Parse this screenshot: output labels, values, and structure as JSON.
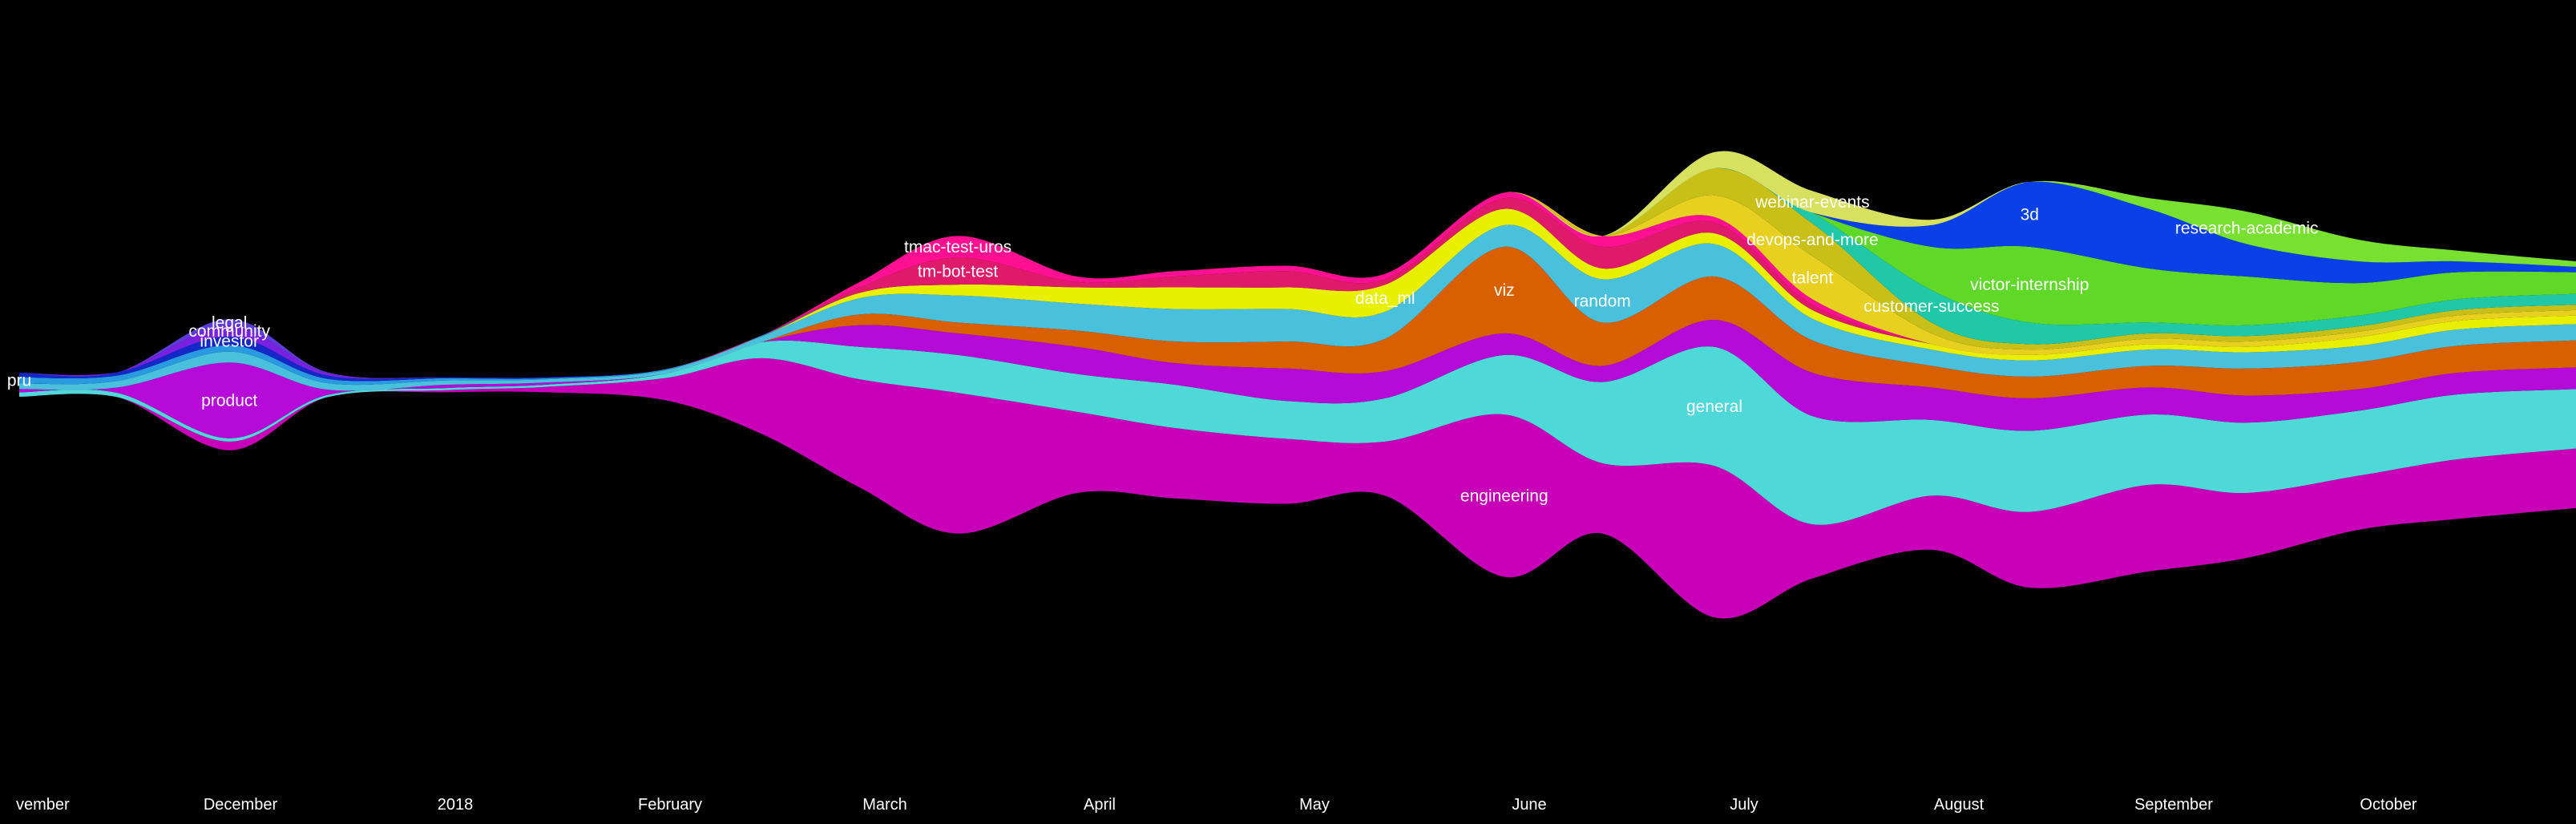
{
  "chart_data": {
    "type": "area",
    "subtype": "streamgraph",
    "background": "#000000",
    "x": [
      "2017-11-01",
      "2017-11-15",
      "2017-12-01",
      "2017-12-15",
      "2018-01-01",
      "2018-01-15",
      "2018-02-01",
      "2018-02-15",
      "2018-03-01",
      "2018-03-15",
      "2018-04-01",
      "2018-04-15",
      "2018-05-01",
      "2018-05-15",
      "2018-06-01",
      "2018-06-15",
      "2018-07-01",
      "2018-07-15",
      "2018-08-01",
      "2018-08-15",
      "2018-09-01",
      "2018-09-15",
      "2018-10-01",
      "2018-10-15",
      "2018-11-01"
    ],
    "xticks": [
      "vember",
      "December",
      "2018",
      "February",
      "March",
      "April",
      "May",
      "June",
      "July",
      "August",
      "September",
      "October"
    ],
    "series": [
      {
        "name": "engineering",
        "color": "#c800b8",
        "values": [
          0,
          0,
          8,
          0,
          2,
          5,
          20,
          70,
          100,
          130,
          75,
          65,
          60,
          50,
          150,
          65,
          140,
          50,
          50,
          70,
          80,
          60,
          50,
          55,
          55
        ]
      },
      {
        "name": "general",
        "color": "#4fd8d8",
        "values": [
          4,
          4,
          3,
          2,
          2,
          2,
          4,
          15,
          30,
          35,
          35,
          40,
          35,
          40,
          55,
          75,
          110,
          100,
          70,
          75,
          65,
          65,
          60,
          60,
          55
        ]
      },
      {
        "name": "product",
        "color": "#b60ad8",
        "values": [
          3,
          5,
          70,
          5,
          3,
          2,
          0,
          0,
          20,
          20,
          25,
          20,
          30,
          25,
          20,
          15,
          25,
          40,
          30,
          30,
          25,
          25,
          20,
          20,
          20
        ]
      },
      {
        "name": "viz",
        "color": "#d86000",
        "values": [
          0,
          0,
          0,
          0,
          0,
          0,
          0,
          0,
          10,
          10,
          15,
          20,
          25,
          30,
          80,
          40,
          40,
          30,
          20,
          20,
          20,
          25,
          25,
          25,
          25
        ]
      },
      {
        "name": "random",
        "color": "#49c0dc",
        "values": [
          5,
          6,
          10,
          6,
          4,
          3,
          3,
          5,
          15,
          25,
          25,
          30,
          30,
          25,
          20,
          40,
          30,
          20,
          15,
          15,
          15,
          15,
          15,
          15,
          15
        ]
      },
      {
        "name": "data_ml",
        "color": "#e8f000",
        "values": [
          0,
          0,
          0,
          0,
          0,
          0,
          0,
          0,
          5,
          10,
          15,
          20,
          20,
          25,
          15,
          10,
          10,
          8,
          5,
          5,
          5,
          5,
          8,
          8,
          8
        ]
      },
      {
        "name": "pru",
        "color": "#2a9ae0",
        "values": [
          6,
          5,
          6,
          4,
          2,
          1,
          1,
          1,
          0,
          0,
          0,
          0,
          0,
          0,
          0,
          0,
          0,
          0,
          0,
          0,
          0,
          0,
          0,
          0,
          0
        ]
      },
      {
        "name": "investor",
        "color": "#1428c8",
        "values": [
          4,
          3,
          8,
          3,
          1,
          1,
          0,
          0,
          0,
          0,
          0,
          0,
          0,
          0,
          0,
          0,
          0,
          0,
          0,
          0,
          0,
          0,
          0,
          0,
          0
        ]
      },
      {
        "name": "community",
        "color": "#7a20e0",
        "values": [
          0,
          0,
          10,
          2,
          0,
          0,
          0,
          0,
          0,
          0,
          0,
          0,
          0,
          0,
          0,
          0,
          0,
          0,
          0,
          0,
          0,
          0,
          0,
          0,
          0
        ]
      },
      {
        "name": "legal",
        "color": "#5e3ad8",
        "values": [
          0,
          0,
          6,
          1,
          0,
          0,
          0,
          0,
          0,
          0,
          0,
          0,
          0,
          0,
          0,
          0,
          0,
          0,
          0,
          0,
          0,
          0,
          0,
          0,
          0
        ]
      },
      {
        "name": "tm-bot-test",
        "color": "#e01a6a",
        "values": [
          0,
          0,
          0,
          0,
          0,
          0,
          0,
          0,
          5,
          25,
          5,
          10,
          15,
          5,
          10,
          20,
          10,
          5,
          0,
          0,
          0,
          0,
          0,
          0,
          0
        ]
      },
      {
        "name": "tmac-test-uros",
        "color": "#ff1093",
        "values": [
          0,
          0,
          0,
          0,
          0,
          0,
          0,
          0,
          5,
          20,
          5,
          5,
          5,
          5,
          5,
          10,
          5,
          5,
          0,
          0,
          0,
          0,
          0,
          0,
          0
        ]
      },
      {
        "name": "talent",
        "color": "#e8d020",
        "values": [
          0,
          0,
          0,
          0,
          0,
          0,
          0,
          0,
          0,
          0,
          0,
          0,
          0,
          0,
          0,
          0,
          20,
          40,
          10,
          5,
          5,
          5,
          5,
          5,
          5
        ]
      },
      {
        "name": "devops-and-more",
        "color": "#c8c018",
        "values": [
          0,
          0,
          0,
          0,
          0,
          0,
          0,
          0,
          0,
          0,
          0,
          0,
          0,
          0,
          0,
          0,
          25,
          30,
          10,
          5,
          5,
          5,
          5,
          5,
          5
        ]
      },
      {
        "name": "customer-success",
        "color": "#20c8a8",
        "values": [
          0,
          0,
          0,
          0,
          0,
          0,
          0,
          0,
          0,
          0,
          0,
          0,
          0,
          0,
          0,
          0,
          0,
          10,
          30,
          20,
          10,
          10,
          10,
          10,
          10
        ]
      },
      {
        "name": "victor-internship",
        "color": "#60d828",
        "values": [
          0,
          0,
          0,
          0,
          0,
          0,
          0,
          0,
          0,
          0,
          0,
          0,
          0,
          0,
          0,
          0,
          0,
          0,
          40,
          70,
          50,
          45,
          30,
          25,
          20
        ]
      },
      {
        "name": "3d",
        "color": "#0a40e8",
        "values": [
          0,
          0,
          0,
          0,
          0,
          0,
          0,
          0,
          0,
          0,
          0,
          0,
          0,
          0,
          0,
          0,
          0,
          0,
          20,
          60,
          55,
          30,
          20,
          10,
          5
        ]
      },
      {
        "name": "research-academic",
        "color": "#78e030",
        "values": [
          0,
          0,
          0,
          0,
          0,
          0,
          0,
          0,
          0,
          0,
          0,
          0,
          0,
          0,
          0,
          0,
          0,
          0,
          0,
          0,
          10,
          30,
          20,
          10,
          5
        ]
      },
      {
        "name": "webinar-events",
        "color": "#d8e060",
        "values": [
          0,
          0,
          0,
          0,
          0,
          0,
          0,
          0,
          0,
          0,
          0,
          0,
          0,
          0,
          0,
          0,
          15,
          20,
          5,
          0,
          0,
          0,
          0,
          0,
          0
        ]
      }
    ],
    "stream_labels": [
      {
        "text": "engineering",
        "series": "engineering"
      },
      {
        "text": "product",
        "series": "product"
      },
      {
        "text": "pru",
        "series": "pru"
      },
      {
        "text": "investor",
        "series": "investor"
      },
      {
        "text": "community",
        "series": "community"
      },
      {
        "text": "legal",
        "series": "legal"
      },
      {
        "text": "general",
        "series": "general"
      },
      {
        "text": "random",
        "series": "random"
      },
      {
        "text": "viz",
        "series": "viz"
      },
      {
        "text": "data_ml",
        "series": "data_ml"
      },
      {
        "text": "tm-bot-test",
        "series": "tm-bot-test"
      },
      {
        "text": "tmac-test-uros",
        "series": "tmac-test-uros"
      },
      {
        "text": "talent",
        "series": "talent"
      },
      {
        "text": "webinar-events",
        "series": "webinar-events"
      },
      {
        "text": "devops-and-more",
        "series": "devops-and-more"
      },
      {
        "text": "customer-success",
        "series": "customer-success"
      },
      {
        "text": "victor-internship",
        "series": "victor-internship"
      },
      {
        "text": "3d",
        "series": "3d"
      },
      {
        "text": "research-academic",
        "series": "research-academic"
      }
    ],
    "legend": "none",
    "grid": false
  }
}
